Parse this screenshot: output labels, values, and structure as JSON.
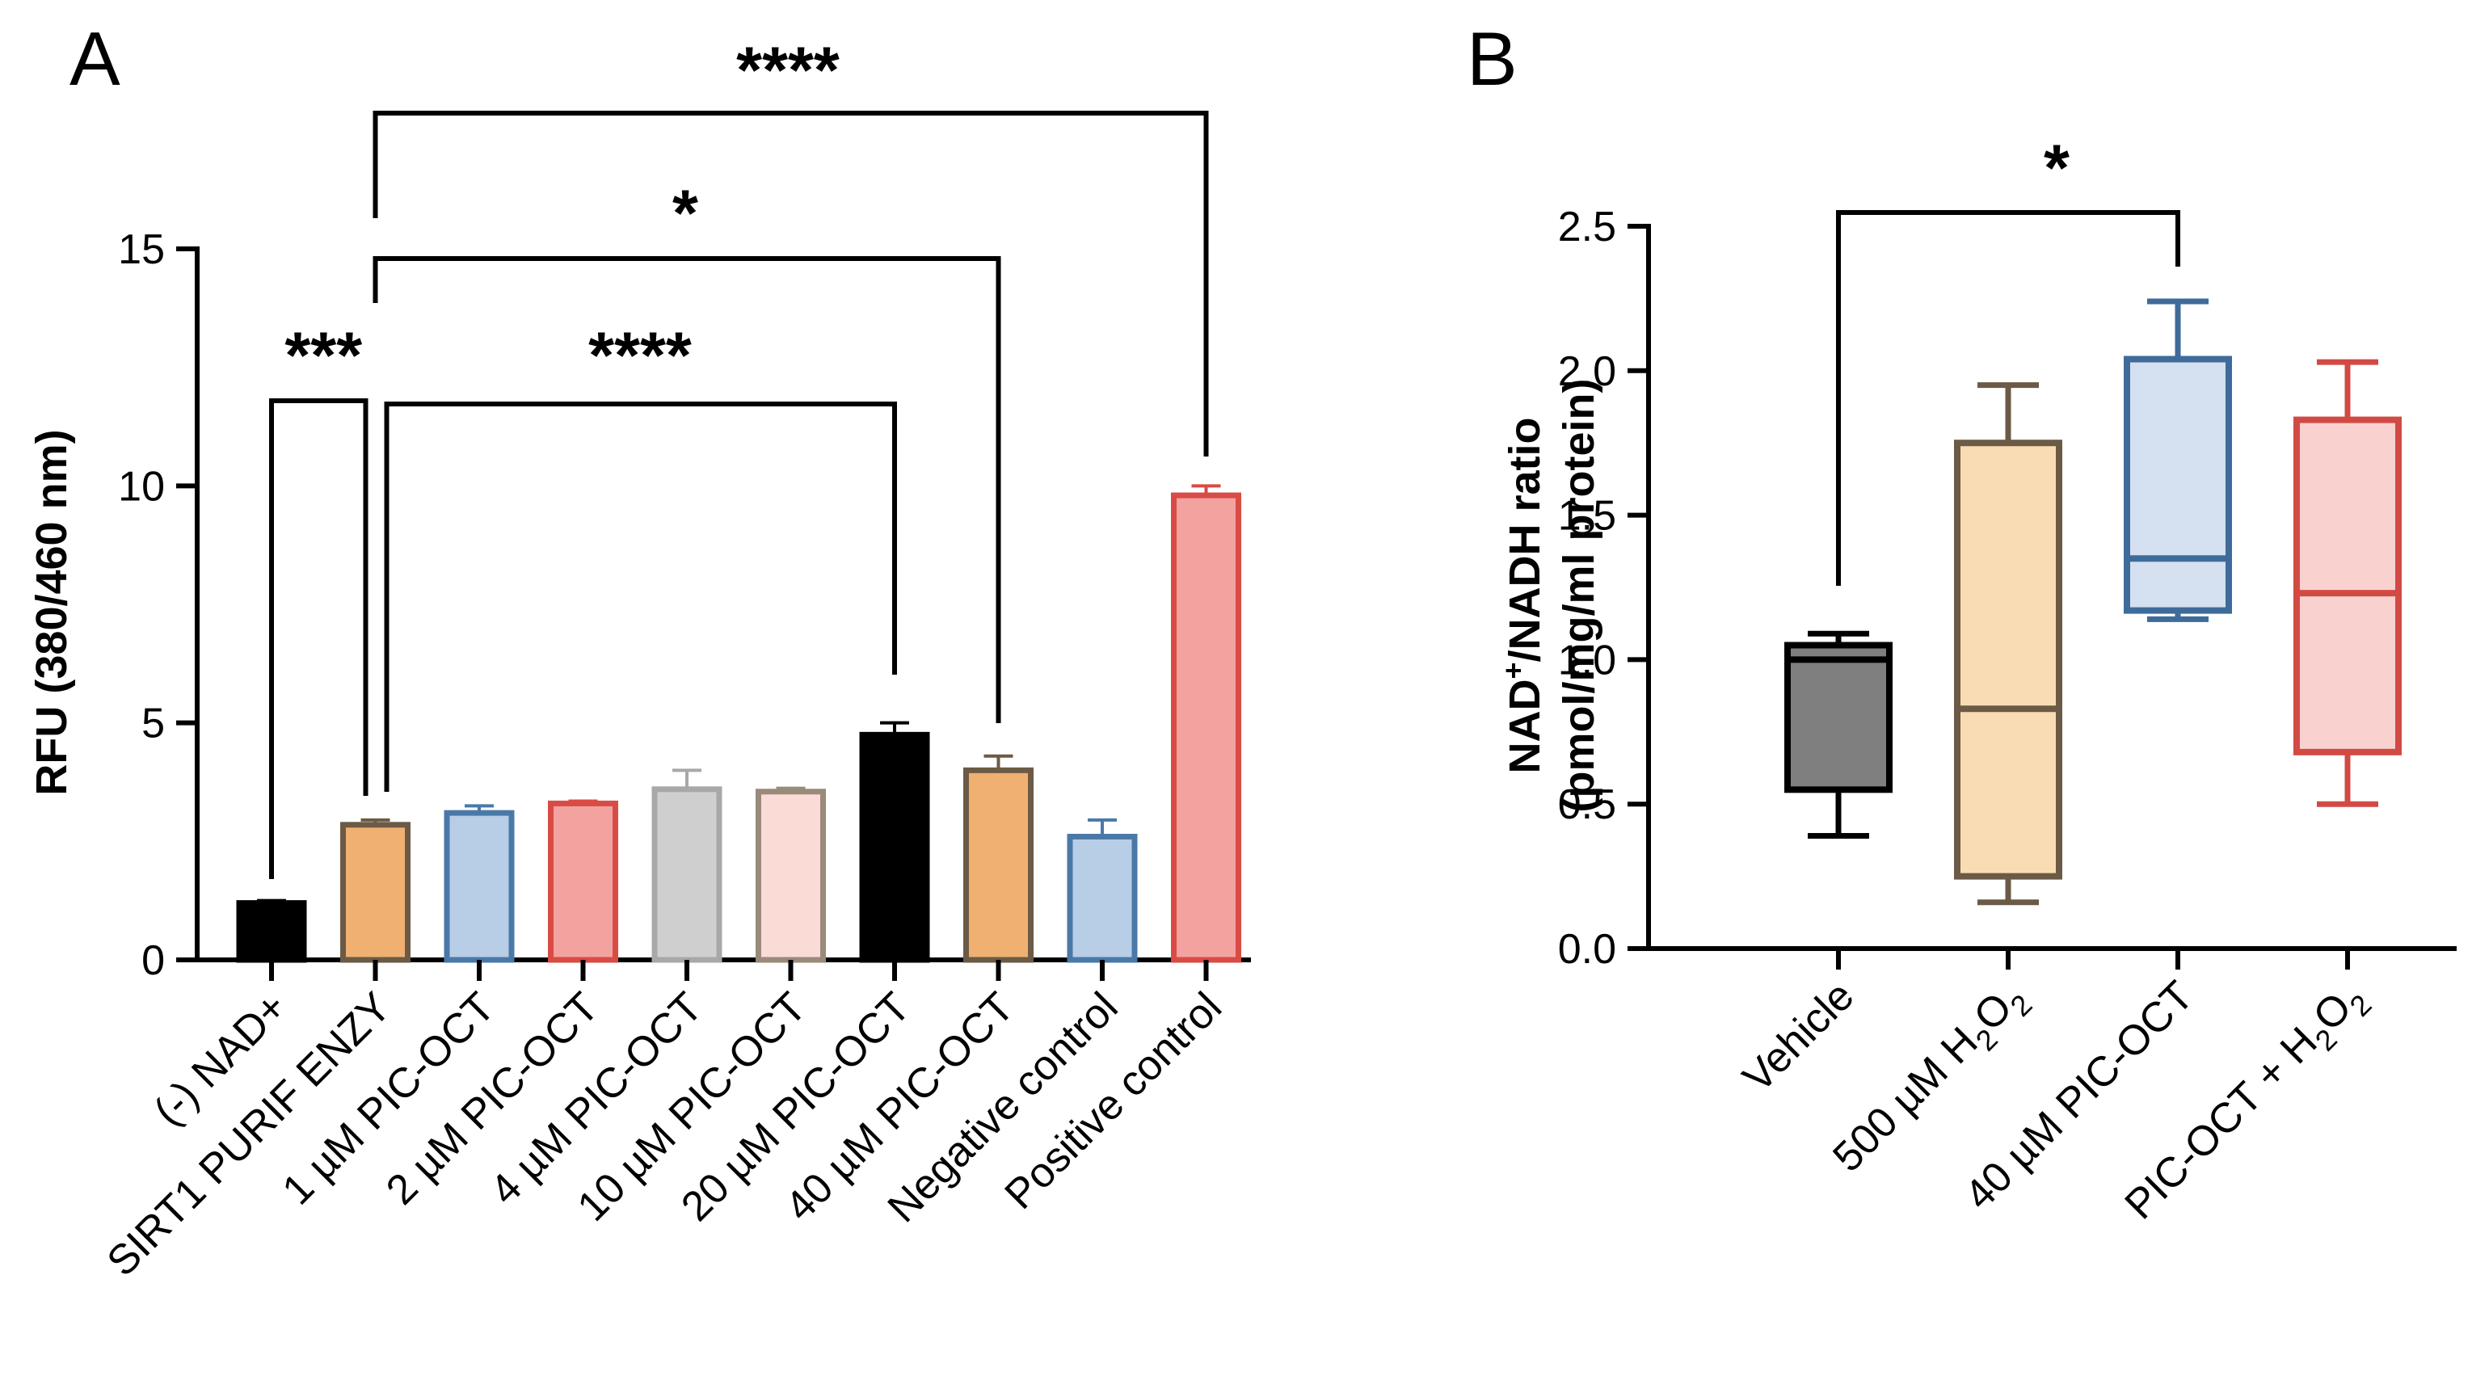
{
  "panels": {
    "a": {
      "letter": "A"
    },
    "b": {
      "letter": "B"
    }
  },
  "chart_data": [
    {
      "type": "bar",
      "panel": "A",
      "ylabel": "RFU (380/460 nm)",
      "xlabel": "",
      "ylim": [
        0,
        15
      ],
      "yticks": [
        "0",
        "5",
        "10",
        "15"
      ],
      "categories": [
        "(-) NAD+",
        "SIRT1 PURIF ENZY",
        "1 µM PIC-OCT",
        "2 µM PIC-OCT",
        "4 µM PIC-OCT",
        "10 µM PIC-OCT",
        "20 µM PIC-OCT",
        "40 µM PIC-OCT",
        "Negative control",
        "Positive control"
      ],
      "values": [
        1.2,
        2.85,
        3.1,
        3.3,
        3.6,
        3.55,
        4.75,
        4.0,
        2.6,
        9.8
      ],
      "errors": [
        0.05,
        0.1,
        0.15,
        0.05,
        0.4,
        0.07,
        0.25,
        0.3,
        0.35,
        0.2
      ],
      "fills": [
        "#000000",
        "#f0b072",
        "#b8cde6",
        "#f2a3a0",
        "#cfcfcf",
        "#fadbd6",
        "#000000",
        "#f0b072",
        "#b8cde6",
        "#f2a3a0"
      ],
      "strokes": [
        "#000000",
        "#6b5a45",
        "#4a79a8",
        "#d94b45",
        "#a8a8a8",
        "#9a8a7a",
        "#000000",
        "#6b5a45",
        "#4a79a8",
        "#d94b45"
      ],
      "grid": false,
      "significance": [
        {
          "from": 0,
          "to": 1,
          "label": "***"
        },
        {
          "from": 1,
          "to": 6,
          "label": "****"
        },
        {
          "from": 1,
          "to": 7,
          "label": "*"
        },
        {
          "from": 1,
          "to": 9,
          "label": "****"
        }
      ]
    },
    {
      "type": "box",
      "panel": "B",
      "ylabel_line1": "NAD",
      "ylabel_sup": "+",
      "ylabel_line1_rest": "/NADH ratio",
      "ylabel_line2": "(pmol/mg/ml protein)",
      "ylim": [
        0,
        2.5
      ],
      "yticks": [
        "0.0",
        "0.5",
        "1.0",
        "1.5",
        "2.0",
        "2.5"
      ],
      "categories": [
        {
          "parts": [
            {
              "t": "Vehicle"
            }
          ]
        },
        {
          "parts": [
            {
              "t": "500 µM H"
            },
            {
              "t": "2",
              "sub": true
            },
            {
              "t": "O"
            },
            {
              "t": "2",
              "sub": true
            }
          ]
        },
        {
          "parts": [
            {
              "t": "40 µM PIC-OCT"
            }
          ]
        },
        {
          "parts": [
            {
              "t": "PIC-OCT + H"
            },
            {
              "t": "2",
              "sub": true
            },
            {
              "t": "O"
            },
            {
              "t": "2",
              "sub": true
            }
          ]
        }
      ],
      "boxes": [
        {
          "min": 0.39,
          "q1": 0.55,
          "median": 1.0,
          "q3": 1.05,
          "max": 1.09
        },
        {
          "min": 0.16,
          "q1": 0.25,
          "median": 0.83,
          "q3": 1.75,
          "max": 1.95
        },
        {
          "min": 1.14,
          "q1": 1.17,
          "median": 1.35,
          "q3": 2.04,
          "max": 2.24
        },
        {
          "min": 0.5,
          "q1": 0.68,
          "median": 1.23,
          "q3": 1.83,
          "max": 2.03
        }
      ],
      "fills": [
        "#7f7f7f",
        "#fadcb4",
        "#d5e0f0",
        "#f9d2d0"
      ],
      "strokes": [
        "#000000",
        "#6b5a45",
        "#3e6b9a",
        "#d24a44"
      ],
      "grid": false,
      "significance": [
        {
          "from": 0,
          "to": 2,
          "label": "*"
        }
      ]
    }
  ]
}
